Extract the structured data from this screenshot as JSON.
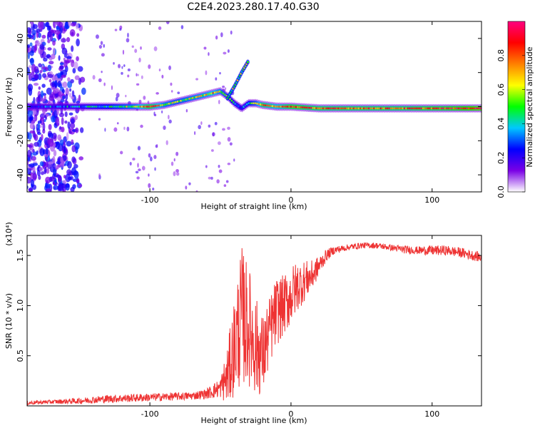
{
  "title": "C2E4.2023.280.17.40.G30",
  "chart_data": [
    {
      "type": "heatmap",
      "xlabel": "Height of straight line (km)",
      "ylabel": "Frequency (Hz)",
      "xlim": [
        -187,
        135
      ],
      "ylim": [
        -50,
        50
      ],
      "xticks": [
        -100,
        0,
        100
      ],
      "xtick_labels": [
        "-100",
        "0",
        "100"
      ],
      "yticks": [
        -40,
        -20,
        0,
        20,
        40
      ],
      "ytick_labels": [
        "-40",
        "-20",
        "0",
        "20",
        "40"
      ],
      "colorbar": {
        "label": "Normalized spectral amplitude",
        "range": [
          0,
          1
        ],
        "ticks": [
          0.0,
          0.2,
          0.4,
          0.6,
          0.8
        ],
        "tick_labels": [
          "0.0",
          "0.2",
          "0.4",
          "0.6",
          "0.8"
        ],
        "colors": [
          "#ffffff",
          "#7a00e6",
          "#0000ff",
          "#00c8ff",
          "#00ff00",
          "#ffff00",
          "#ff8000",
          "#ff0000",
          "#ff0080"
        ]
      },
      "ridge": {
        "x": [
          -187,
          -150,
          -130,
          -110,
          -100,
          -90,
          -80,
          -70,
          -60,
          -55,
          -50,
          -45,
          -40,
          -35,
          -30,
          -25,
          -20,
          -10,
          0,
          20,
          50,
          80,
          110,
          135
        ],
        "y": [
          0,
          0,
          0,
          0,
          0,
          1,
          3,
          5,
          7,
          8,
          9,
          6,
          2,
          -1,
          2,
          2,
          1,
          0,
          0,
          -1,
          -1,
          -1,
          -1,
          -1
        ],
        "amplitude": [
          0.3,
          0.35,
          0.45,
          0.6,
          0.85,
          0.6,
          0.55,
          0.6,
          0.65,
          0.7,
          0.6,
          0.5,
          0.4,
          0.35,
          0.45,
          0.55,
          0.8,
          0.7,
          0.85,
          0.8,
          0.8,
          0.8,
          0.85,
          0.95
        ]
      },
      "branch": {
        "x": [
          -45,
          -40,
          -35,
          -30
        ],
        "y": [
          5,
          12,
          20,
          27
        ]
      },
      "noise_region_x": [
        -187,
        -145
      ]
    },
    {
      "type": "line",
      "xlabel": "Height of straight line (km)",
      "ylabel": "SNR (10 * v/v)",
      "y_multiplier": "(x10⁴)",
      "xlim": [
        -187,
        135
      ],
      "ylim": [
        0,
        1.7
      ],
      "xticks": [
        -100,
        0,
        100
      ],
      "xtick_labels": [
        "-100",
        "0",
        "100"
      ],
      "yticks": [
        0.5,
        1.0,
        1.5
      ],
      "ytick_labels": [
        "0.5",
        "1.0",
        "1.5"
      ],
      "color": "#ee3333",
      "x": [
        -187,
        -170,
        -150,
        -130,
        -110,
        -90,
        -70,
        -60,
        -50,
        -45,
        -40,
        -35,
        -30,
        -25,
        -20,
        -15,
        -10,
        -5,
        0,
        5,
        10,
        15,
        20,
        25,
        30,
        40,
        50,
        60,
        70,
        80,
        90,
        100,
        110,
        120,
        135
      ],
      "y": [
        0.03,
        0.04,
        0.05,
        0.07,
        0.08,
        0.09,
        0.1,
        0.12,
        0.18,
        0.3,
        0.6,
        0.9,
        0.8,
        0.6,
        0.5,
        0.75,
        0.95,
        1.0,
        1.1,
        1.2,
        1.25,
        1.3,
        1.4,
        1.5,
        1.55,
        1.58,
        1.6,
        1.6,
        1.58,
        1.56,
        1.55,
        1.55,
        1.55,
        1.53,
        1.48
      ],
      "spread": [
        0.02,
        0.02,
        0.03,
        0.04,
        0.04,
        0.04,
        0.04,
        0.05,
        0.1,
        0.3,
        0.5,
        0.7,
        0.6,
        0.5,
        0.4,
        0.35,
        0.35,
        0.3,
        0.3,
        0.25,
        0.2,
        0.15,
        0.1,
        0.06,
        0.04,
        0.03,
        0.03,
        0.03,
        0.03,
        0.04,
        0.04,
        0.05,
        0.05,
        0.05,
        0.05
      ]
    }
  ]
}
